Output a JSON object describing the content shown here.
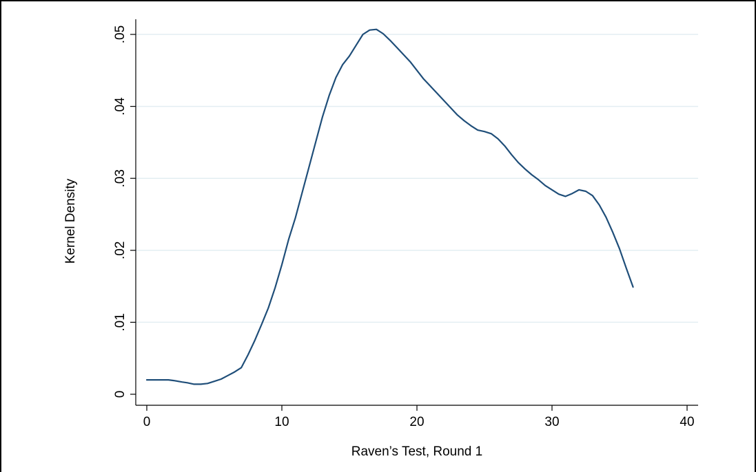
{
  "chart_data": {
    "type": "line",
    "title": "",
    "xlabel": "Raven’s Test, Round 1",
    "ylabel": "Kernel Density",
    "xlim": [
      0,
      40
    ],
    "ylim": [
      0,
      0.05
    ],
    "x_ticks": [
      0,
      10,
      20,
      30,
      40
    ],
    "x_tick_labels": [
      "0",
      "10",
      "20",
      "30",
      "40"
    ],
    "y_ticks": [
      0,
      0.01,
      0.02,
      0.03,
      0.04,
      0.05
    ],
    "y_tick_labels": [
      "0",
      ".01",
      ".02",
      ".03",
      ".04",
      ".05"
    ],
    "grid": "horizontal",
    "legend": "none",
    "line_color": "#1f4e79",
    "gridline_color": "#e3eef2",
    "series": [
      {
        "x": [
          0,
          1,
          1.6,
          2,
          2.6,
          3,
          3.5,
          4,
          4.5,
          5,
          5.5,
          6,
          6.5,
          7,
          7.5,
          8,
          8.5,
          9,
          9.5,
          10,
          10.5,
          11,
          11.5,
          12,
          12.5,
          13,
          13.5,
          14,
          14.5,
          15,
          15.5,
          16,
          16.5,
          17,
          17.5,
          18,
          18.5,
          19,
          19.5,
          20,
          20.5,
          21,
          21.5,
          22,
          22.5,
          23,
          23.5,
          24,
          24.5,
          25,
          25.5,
          26,
          26.5,
          27,
          27.5,
          28,
          28.5,
          29,
          29.5,
          30,
          30.5,
          31,
          31.5,
          32,
          32.5,
          33,
          33.5,
          34,
          34.5,
          35,
          35.5,
          36
        ],
        "y": [
          0.002,
          0.002,
          0.002,
          0.0019,
          0.0017,
          0.0016,
          0.0014,
          0.0014,
          0.0015,
          0.0018,
          0.0021,
          0.0026,
          0.0031,
          0.0037,
          0.0055,
          0.0075,
          0.0097,
          0.012,
          0.0148,
          0.018,
          0.0215,
          0.0245,
          0.028,
          0.0315,
          0.035,
          0.0385,
          0.0415,
          0.044,
          0.0458,
          0.047,
          0.0485,
          0.05,
          0.0506,
          0.0507,
          0.0501,
          0.0492,
          0.0482,
          0.0472,
          0.0462,
          0.045,
          0.0438,
          0.0428,
          0.0418,
          0.0408,
          0.0398,
          0.0388,
          0.038,
          0.0373,
          0.0367,
          0.0365,
          0.0362,
          0.0355,
          0.0345,
          0.0333,
          0.0322,
          0.0313,
          0.0305,
          0.0298,
          0.029,
          0.0284,
          0.0278,
          0.0275,
          0.0279,
          0.0284,
          0.0282,
          0.0276,
          0.0263,
          0.0246,
          0.0225,
          0.0202,
          0.0175,
          0.0149
        ]
      }
    ]
  }
}
